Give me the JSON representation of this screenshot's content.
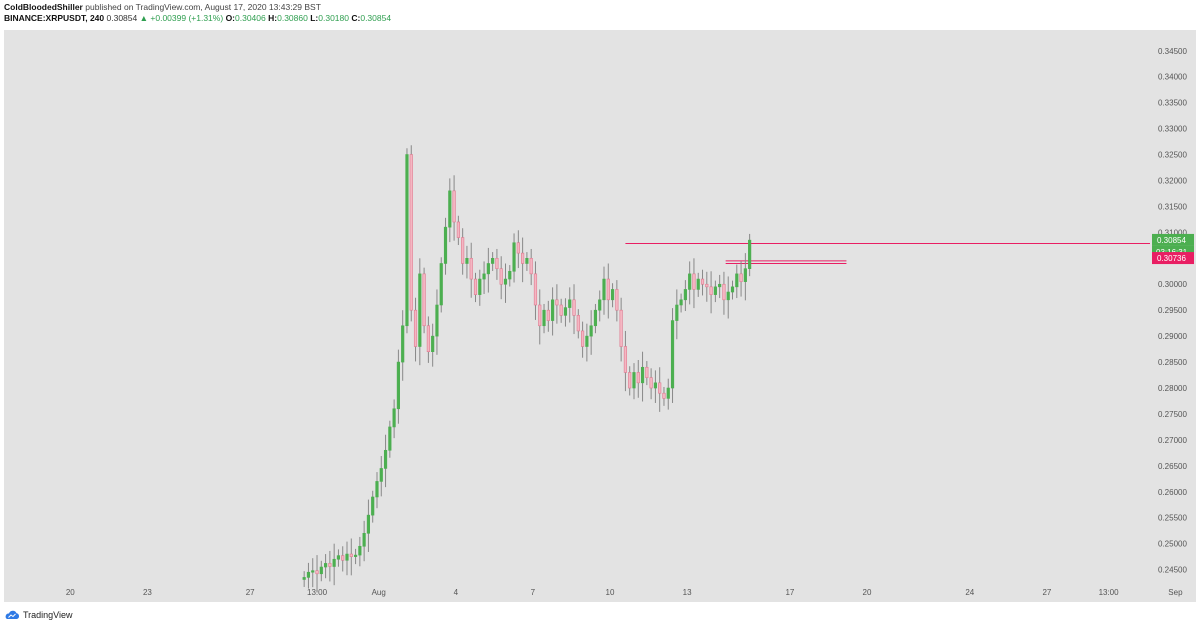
{
  "header": {
    "author": "ColdBloodedShiller",
    "published_text": "published on TradingView.com, August 17, 2020 13:43:29 BST",
    "symbol": "BINANCE:XRPUSDT, 240",
    "last_price": "0.30854",
    "change": "▲ +0.00399 (+1.31%)",
    "o_label": "O:",
    "o_value": "0.30406",
    "h_label": "H:",
    "h_value": "0.30860",
    "l_label": "L:",
    "l_value": "0.30180",
    "c_label": "C:",
    "c_value": "0.30854"
  },
  "footer": {
    "brand": "TradingView",
    "logo_icon": "tradingview-cloud-icon"
  },
  "colors": {
    "up": "#4caf50",
    "down": "#f4b6c2",
    "down_outline": "#e07a90",
    "wick": "#888888",
    "resistance": "#e91e63",
    "price_tag": "#4caf50",
    "level_tag": "#e91e63",
    "background": "#e3e3e3"
  },
  "chart_data": {
    "type": "candlestick",
    "symbol": "BINANCE:XRPUSDT",
    "timeframe": "240",
    "y_range": [
      0.243,
      0.349
    ],
    "y_ticks": [
      "0.34500",
      "0.34000",
      "0.33500",
      "0.33000",
      "0.32500",
      "0.32000",
      "0.31500",
      "0.31000",
      "0.30500",
      "0.30000",
      "0.29500",
      "0.29000",
      "0.28500",
      "0.28000",
      "0.27500",
      "0.27000",
      "0.26500",
      "0.26000",
      "0.25500",
      "0.25000",
      "0.24500"
    ],
    "x_ticks": [
      {
        "label": "20",
        "day": -11
      },
      {
        "label": "23",
        "day": -8
      },
      {
        "label": "27",
        "day": -4
      },
      {
        "label": "13:00",
        "day": -1.4
      },
      {
        "label": "Aug",
        "day": 1
      },
      {
        "label": "4",
        "day": 4
      },
      {
        "label": "7",
        "day": 7
      },
      {
        "label": "10",
        "day": 10
      },
      {
        "label": "13",
        "day": 13
      },
      {
        "label": "17",
        "day": 17
      },
      {
        "label": "20",
        "day": 20
      },
      {
        "label": "24",
        "day": 24
      },
      {
        "label": "27",
        "day": 27
      },
      {
        "label": "13:00",
        "day": 29.4
      },
      {
        "label": "Sep",
        "day": 32
      }
    ],
    "current_price": {
      "value": 0.30854,
      "label": "0.30854",
      "countdown": "03:16:31"
    },
    "level_tag": {
      "value": 0.30736,
      "label": "0.30736"
    },
    "lines": [
      {
        "name": "resistance-line",
        "from_day": 10.6,
        "to_day": 32.8,
        "value": 0.30786
      },
      {
        "name": "range-line-upper",
        "from_day": 14.5,
        "to_day": 19.2,
        "value": 0.3045
      },
      {
        "name": "range-line-lower",
        "from_day": 14.5,
        "to_day": 19.2,
        "value": 0.304
      }
    ],
    "start_day": -1.9,
    "candles_per_day": 6,
    "closes": [
      0.2435,
      0.2445,
      0.2448,
      0.2442,
      0.2455,
      0.2462,
      0.2456,
      0.247,
      0.2477,
      0.2468,
      0.248,
      0.2475,
      0.2478,
      0.2495,
      0.252,
      0.2555,
      0.259,
      0.262,
      0.2645,
      0.268,
      0.2725,
      0.276,
      0.285,
      0.292,
      0.325,
      0.295,
      0.288,
      0.302,
      0.292,
      0.287,
      0.29,
      0.296,
      0.304,
      0.311,
      0.318,
      0.312,
      0.309,
      0.304,
      0.305,
      0.301,
      0.298,
      0.301,
      0.302,
      0.304,
      0.305,
      0.303,
      0.3,
      0.301,
      0.3025,
      0.308,
      0.306,
      0.304,
      0.305,
      0.302,
      0.296,
      0.292,
      0.295,
      0.293,
      0.297,
      0.296,
      0.294,
      0.2955,
      0.297,
      0.294,
      0.291,
      0.288,
      0.29,
      0.292,
      0.295,
      0.297,
      0.301,
      0.297,
      0.299,
      0.295,
      0.288,
      0.283,
      0.28,
      0.283,
      0.281,
      0.284,
      0.282,
      0.28,
      0.281,
      0.279,
      0.278,
      0.28,
      0.293,
      0.296,
      0.297,
      0.299,
      0.302,
      0.299,
      0.301,
      0.3,
      0.2995,
      0.298,
      0.2995,
      0.3,
      0.297,
      0.2985,
      0.2995,
      0.302,
      0.3005,
      0.303,
      0.3085
    ]
  }
}
